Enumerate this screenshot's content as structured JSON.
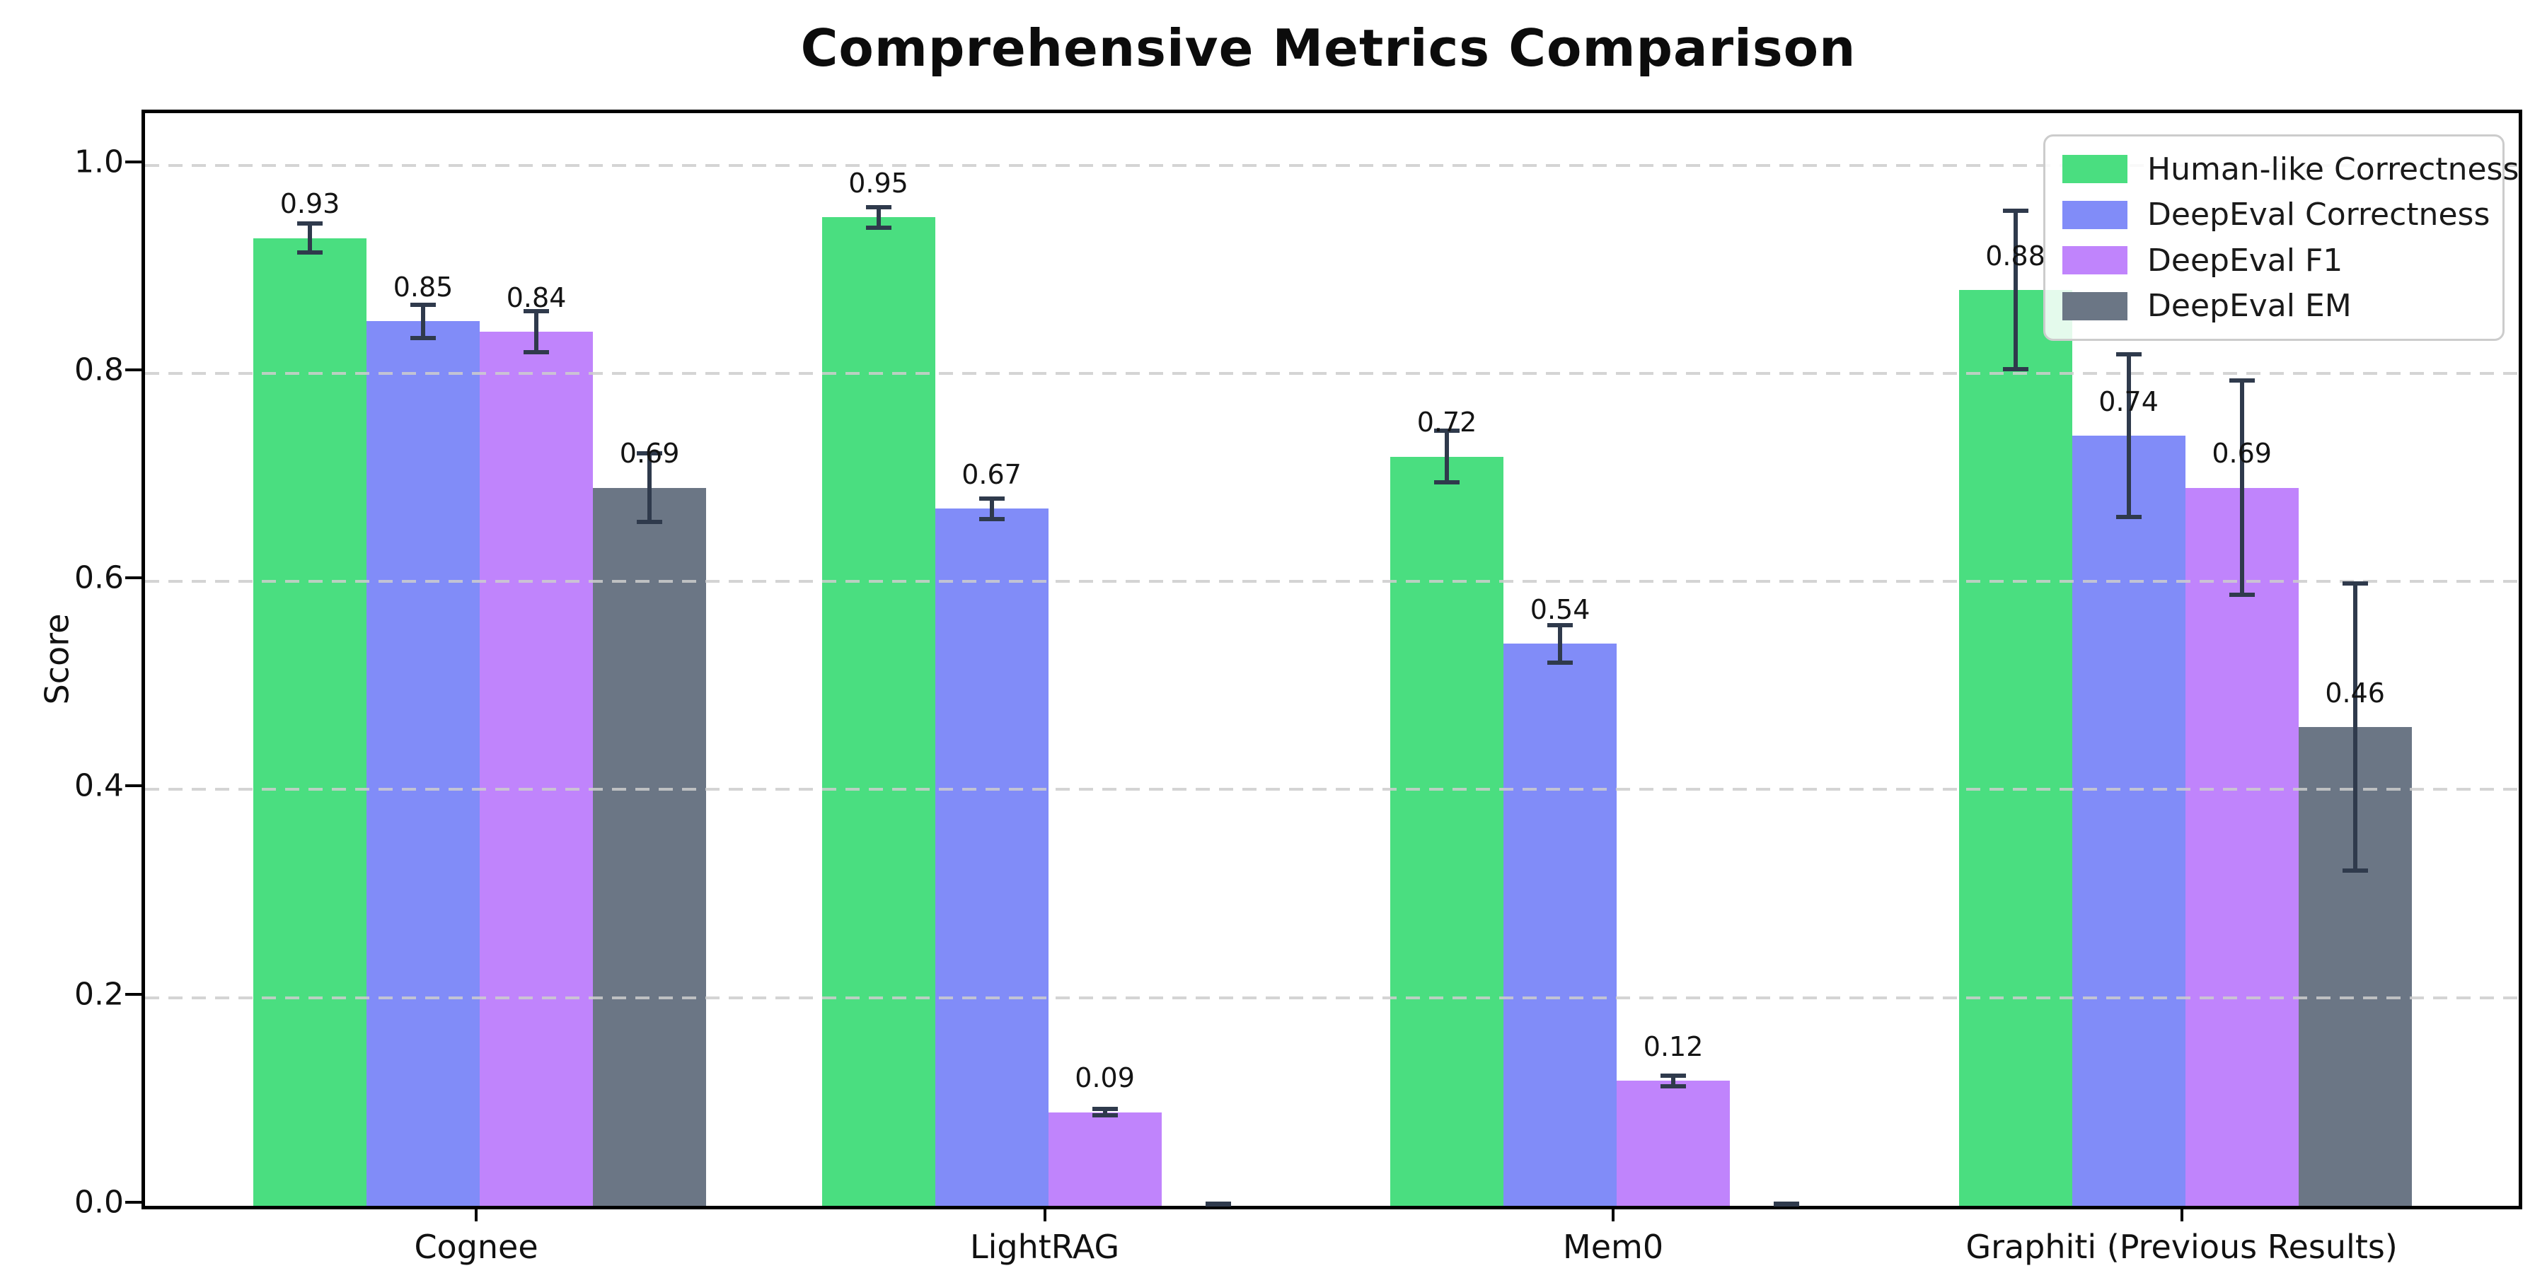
{
  "chart_data": {
    "type": "bar",
    "title": "Comprehensive Metrics Comparison",
    "ylabel": "Score",
    "xlabel": "",
    "ylim": [
      0,
      1.05
    ],
    "yticks": [
      "0.0",
      "0.2",
      "0.4",
      "0.6",
      "0.8",
      "1.0"
    ],
    "ytick_values": [
      0.0,
      0.2,
      0.4,
      0.6,
      0.8,
      1.0
    ],
    "grid": "horizontal-dashed-over-bars",
    "legend_position": "upper-right",
    "categories": [
      "Cognee",
      "LightRAG",
      "Mem0",
      "Graphiti (Previous Results)"
    ],
    "series": [
      {
        "name": "Human-like Correctness",
        "color": "#4ade80",
        "values": [
          0.93,
          0.95,
          0.72,
          0.88
        ],
        "errors": [
          0.016,
          0.012,
          0.027,
          0.078
        ],
        "labels": [
          "0.93",
          "0.95",
          "0.72",
          "0.88"
        ]
      },
      {
        "name": "DeepEval Correctness",
        "color": "#818cf8",
        "values": [
          0.85,
          0.67,
          0.54,
          0.74
        ],
        "errors": [
          0.018,
          0.012,
          0.02,
          0.08
        ],
        "labels": [
          "0.85",
          "0.67",
          "0.54",
          "0.74"
        ]
      },
      {
        "name": "DeepEval F1",
        "color": "#c084fc",
        "values": [
          0.84,
          0.09,
          0.12,
          0.69
        ],
        "errors": [
          0.022,
          0.005,
          0.007,
          0.105
        ],
        "labels": [
          "0.84",
          "0.09",
          "0.12",
          "0.69"
        ]
      },
      {
        "name": "DeepEval EM",
        "color": "#6b7685",
        "values": [
          0.69,
          0.0,
          0.0,
          0.46
        ],
        "errors": [
          0.035,
          0.003,
          0.003,
          0.14
        ],
        "labels": [
          "0.69",
          "",
          "",
          "0.46"
        ]
      }
    ],
    "error_bar_color": "#2f3a4c",
    "style": {
      "grid_color": "#cdcdcd",
      "spine_color": "#000000",
      "text_color": "#111111",
      "background": "#ffffff"
    }
  }
}
